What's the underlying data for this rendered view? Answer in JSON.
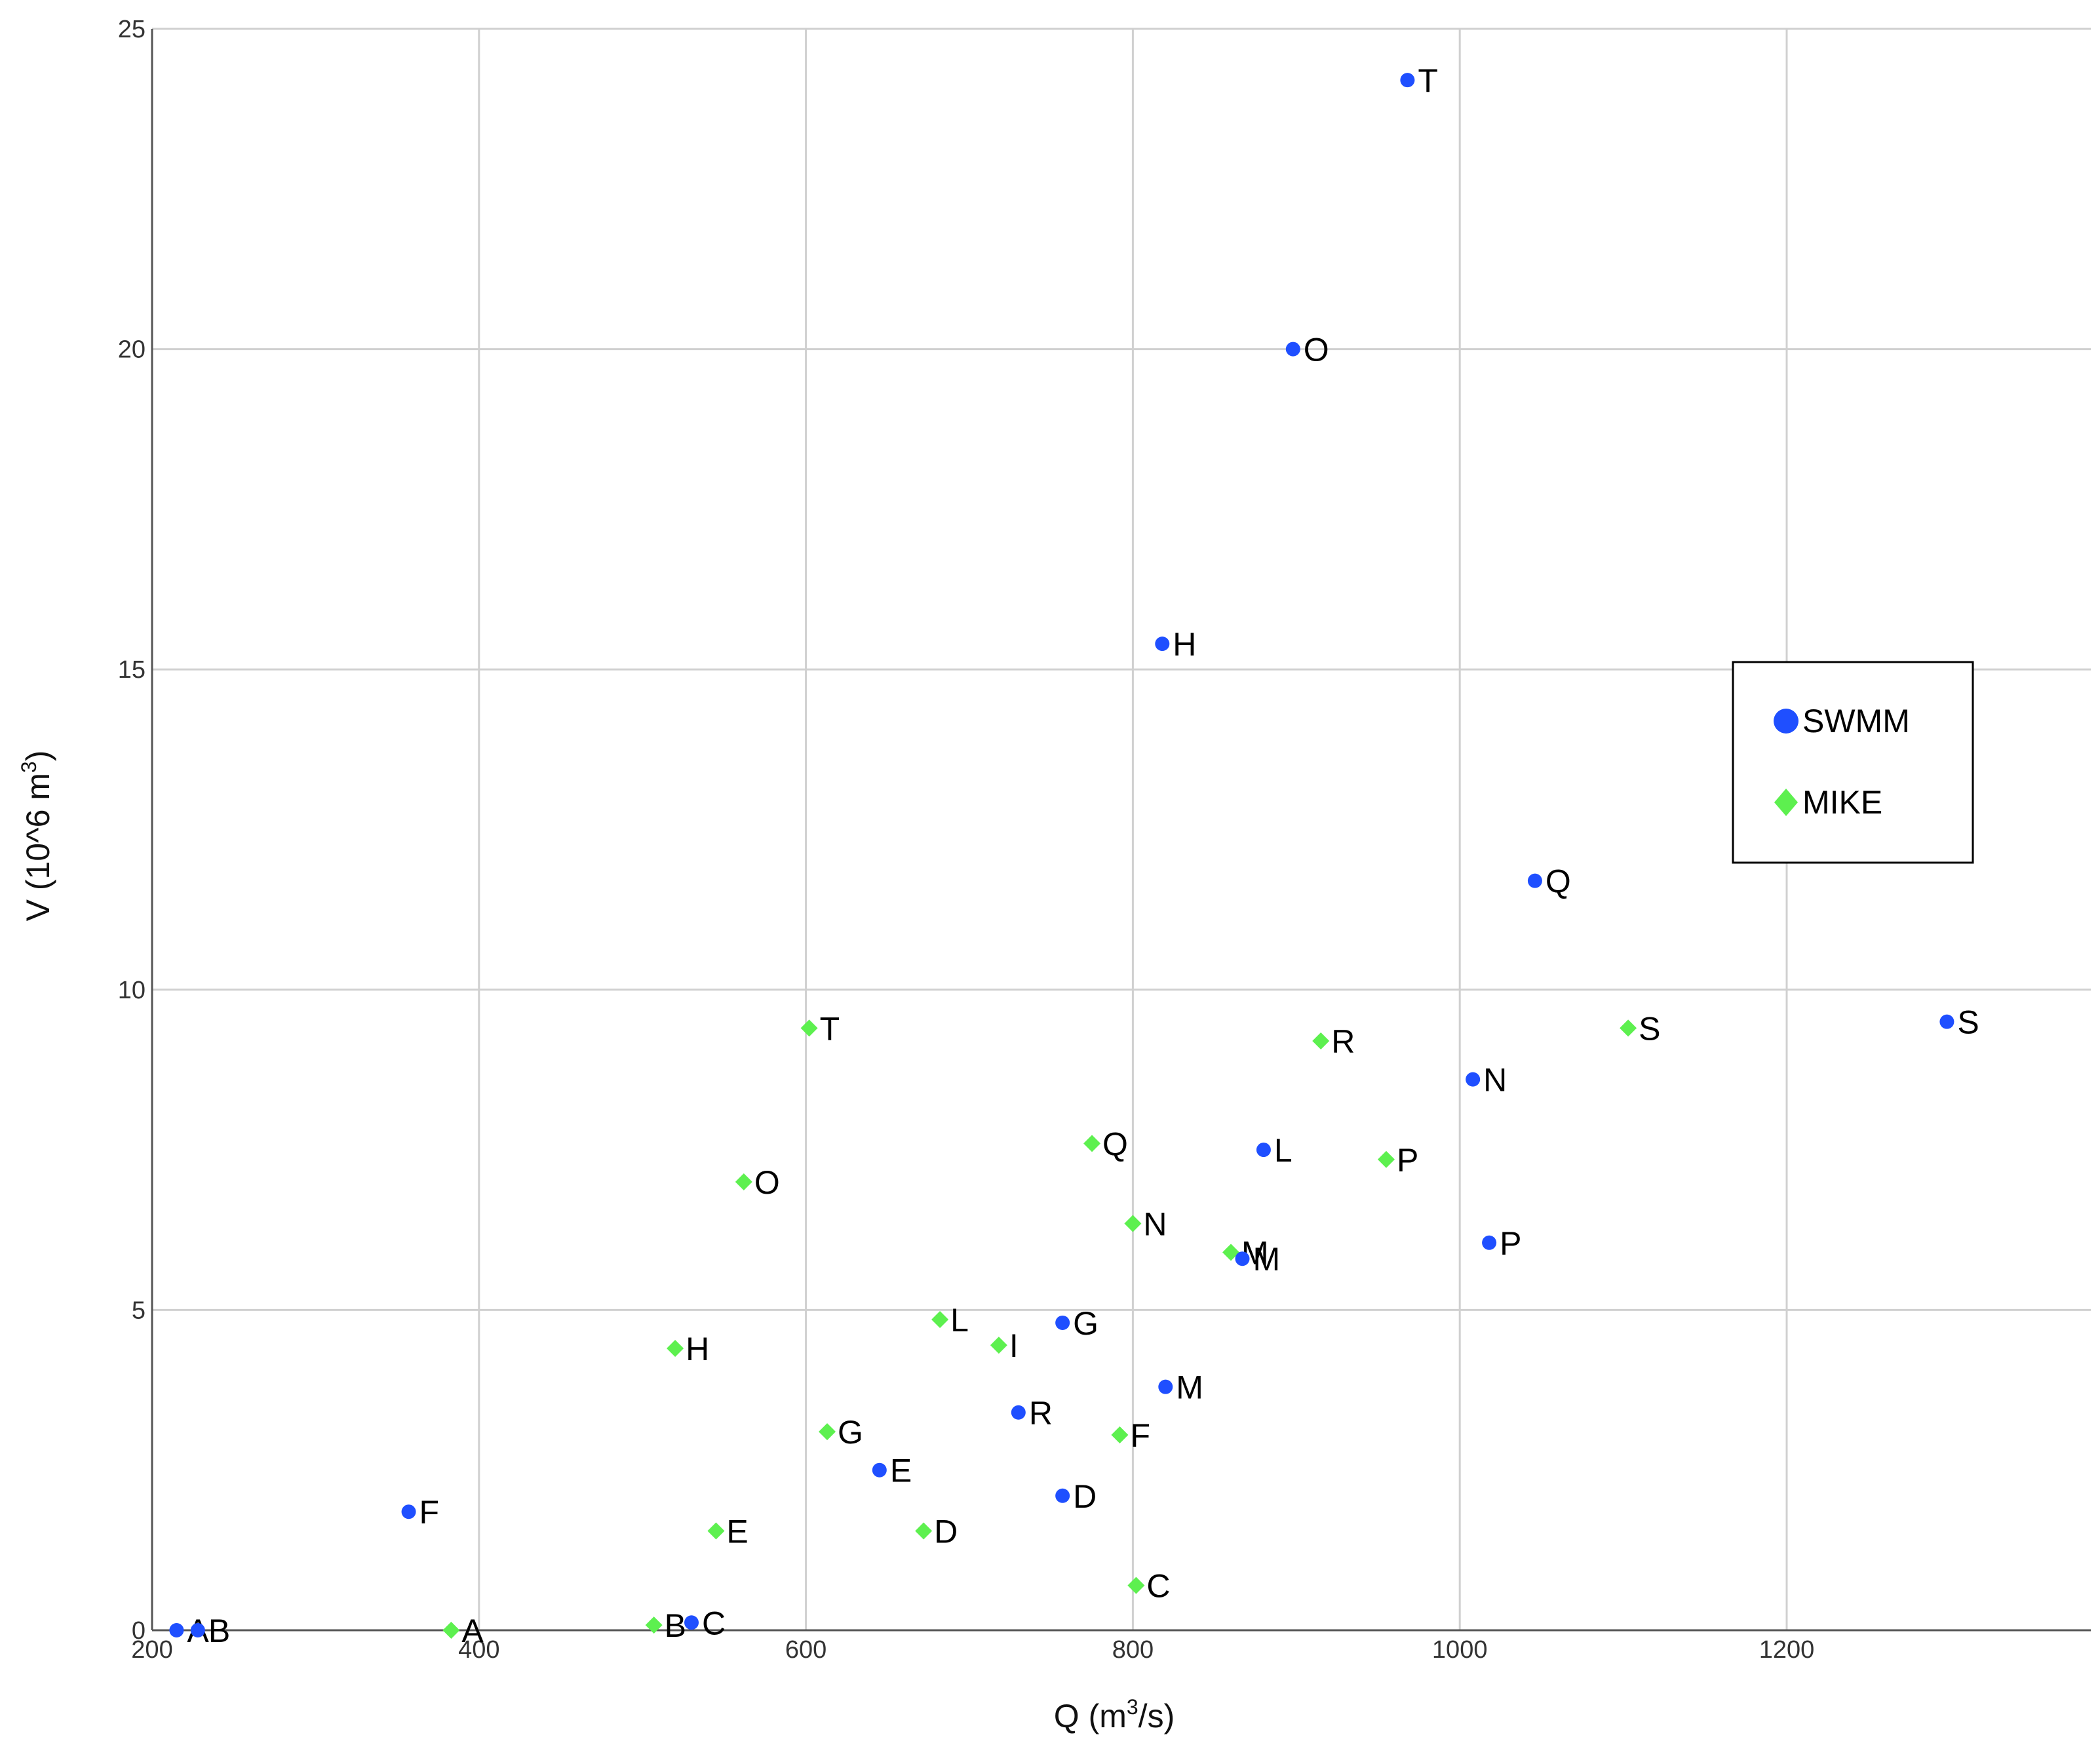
{
  "chart_data": {
    "type": "scatter",
    "title": "",
    "xlabel_main": "Q (m",
    "xlabel_sup": "3",
    "xlabel_end": "/s)",
    "ylabel_main": "V (10^6 m",
    "ylabel_sup": "3",
    "ylabel_end": ")",
    "xlim": [
      200,
      1400
    ],
    "ylim": [
      0,
      25
    ],
    "xticks": [
      200,
      400,
      600,
      800,
      1000,
      1200
    ],
    "yticks": [
      0,
      5,
      10,
      15,
      20,
      25
    ],
    "grid": true,
    "legend_position": "right",
    "series": [
      {
        "name": "SWMM",
        "color": "#1f4fff",
        "marker": "circle",
        "points": [
          {
            "label": "A",
            "x": 215,
            "y": 0.0
          },
          {
            "label": "B",
            "x": 228,
            "y": 0.0
          },
          {
            "label": "C",
            "x": 530,
            "y": 0.12
          },
          {
            "label": "D",
            "x": 757,
            "y": 2.1
          },
          {
            "label": "E",
            "x": 645,
            "y": 2.5
          },
          {
            "label": "F",
            "x": 357,
            "y": 1.85
          },
          {
            "label": "G",
            "x": 757,
            "y": 4.8
          },
          {
            "label": "H",
            "x": 818,
            "y": 15.4
          },
          {
            "label": "M",
            "x": 820,
            "y": 3.8
          },
          {
            "label": "M",
            "x": 867,
            "y": 5.8
          },
          {
            "label": "L",
            "x": 880,
            "y": 7.5
          },
          {
            "label": "N",
            "x": 1008,
            "y": 8.6
          },
          {
            "label": "O",
            "x": 898,
            "y": 20.0
          },
          {
            "label": "P",
            "x": 1018,
            "y": 6.05
          },
          {
            "label": "Q",
            "x": 1046,
            "y": 11.7
          },
          {
            "label": "R",
            "x": 730,
            "y": 3.4
          },
          {
            "label": "S",
            "x": 1298,
            "y": 9.5
          },
          {
            "label": "T",
            "x": 968,
            "y": 24.2
          }
        ]
      },
      {
        "name": "MIKE",
        "color": "#5df04f",
        "marker": "diamond",
        "points": [
          {
            "label": "A",
            "x": 383,
            "y": 0.0
          },
          {
            "label": "B",
            "x": 507,
            "y": 0.08
          },
          {
            "label": "C",
            "x": 802,
            "y": 0.7
          },
          {
            "label": "D",
            "x": 672,
            "y": 1.55
          },
          {
            "label": "E",
            "x": 545,
            "y": 1.55
          },
          {
            "label": "F",
            "x": 792,
            "y": 3.05
          },
          {
            "label": "G",
            "x": 613,
            "y": 3.1
          },
          {
            "label": "H",
            "x": 520,
            "y": 4.4
          },
          {
            "label": "I",
            "x": 718,
            "y": 4.45
          },
          {
            "label": "L",
            "x": 682,
            "y": 4.85
          },
          {
            "label": "M",
            "x": 860,
            "y": 5.9
          },
          {
            "label": "N",
            "x": 800,
            "y": 6.35
          },
          {
            "label": "O",
            "x": 562,
            "y": 7.0
          },
          {
            "label": "P",
            "x": 955,
            "y": 7.35
          },
          {
            "label": "Q",
            "x": 775,
            "y": 7.6
          },
          {
            "label": "R",
            "x": 915,
            "y": 9.2
          },
          {
            "label": "S",
            "x": 1103,
            "y": 9.4
          },
          {
            "label": "T",
            "x": 602,
            "y": 9.4
          }
        ]
      }
    ]
  }
}
